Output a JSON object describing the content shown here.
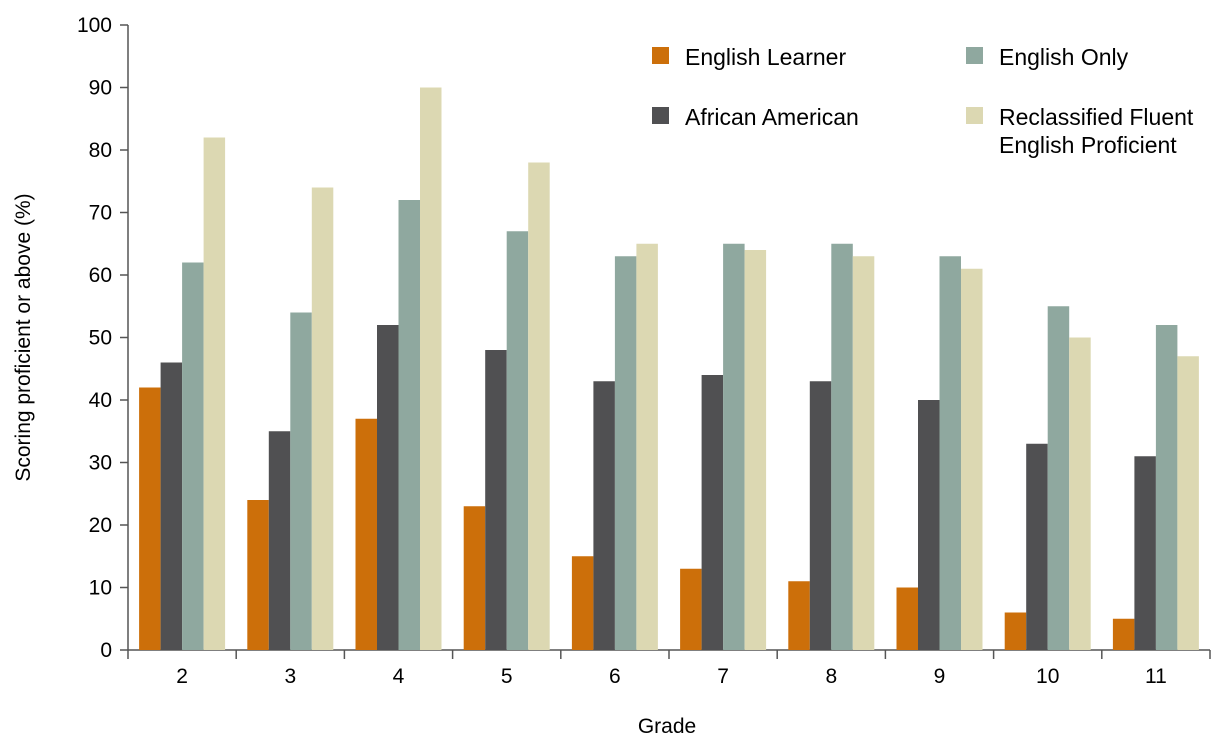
{
  "chart_data": {
    "type": "bar",
    "xlabel": "Grade",
    "ylabel": "Scoring proficient or above (%)",
    "ylim": [
      0,
      100
    ],
    "yticks": [
      0,
      10,
      20,
      30,
      40,
      50,
      60,
      70,
      80,
      90,
      100
    ],
    "categories": [
      "2",
      "3",
      "4",
      "5",
      "6",
      "7",
      "8",
      "9",
      "10",
      "11"
    ],
    "grid": false,
    "legend_position": "top-right",
    "series": [
      {
        "name": "English Learner",
        "color": "#cc6f0a",
        "values": [
          42,
          24,
          37,
          23,
          15,
          13,
          11,
          10,
          6,
          5
        ]
      },
      {
        "name": "African American",
        "color": "#505052",
        "values": [
          46,
          35,
          52,
          48,
          43,
          44,
          43,
          40,
          33,
          31
        ]
      },
      {
        "name": "English Only",
        "color": "#8fa89f",
        "values": [
          62,
          54,
          72,
          67,
          63,
          65,
          65,
          63,
          55,
          52
        ]
      },
      {
        "name": "Reclassified Fluent English Proficient",
        "color": "#dcd8b2",
        "values": [
          82,
          74,
          90,
          78,
          65,
          64,
          63,
          61,
          50,
          47
        ]
      }
    ]
  }
}
